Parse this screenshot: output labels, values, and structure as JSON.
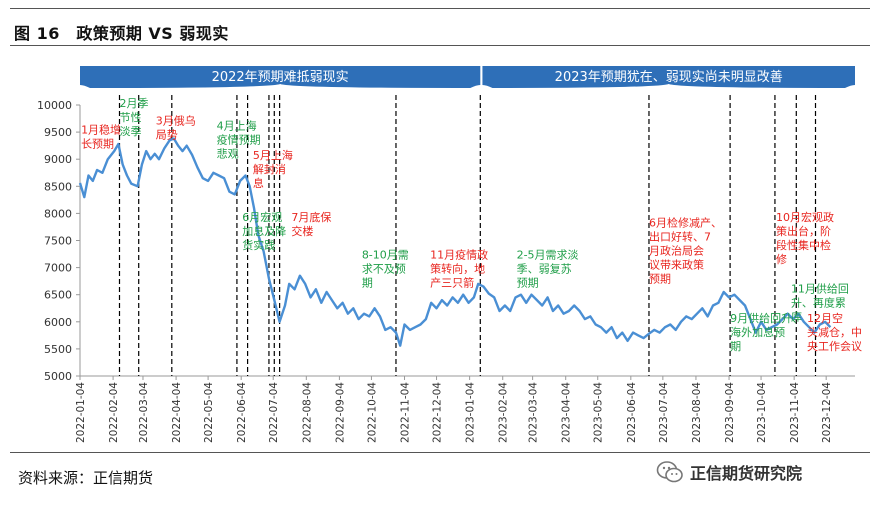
{
  "figure_title": "图 16　政策预期 VS 弱现实",
  "source_text": "资料来源：正信期货",
  "logo_text": "正信期货研究院",
  "colors": {
    "line": "#4a8fd4",
    "band": "#2e6fb8",
    "red": "#e8251f",
    "green": "#1f9e48"
  },
  "chart_data": {
    "type": "line",
    "title": "",
    "xlabel": "",
    "ylabel": "",
    "ylim": [
      5000,
      10000
    ],
    "yticks": [
      5000,
      5500,
      6000,
      6500,
      7000,
      7500,
      8000,
      8500,
      9000,
      9500,
      10000
    ],
    "xlim": [
      "2022-01-04",
      "2023-12-31"
    ],
    "xticks": [
      "2022-01-04",
      "2022-02-04",
      "2022-03-04",
      "2022-04-04",
      "2022-05-04",
      "2022-06-04",
      "2022-07-04",
      "2022-08-04",
      "2022-09-04",
      "2022-10-04",
      "2022-11-04",
      "2022-12-04",
      "2023-01-04",
      "2023-02-04",
      "2023-03-04",
      "2023-04-04",
      "2023-05-04",
      "2023-06-04",
      "2023-07-04",
      "2023-08-04",
      "2023-09-04",
      "2023-10-04",
      "2023-11-04",
      "2023-12-04"
    ],
    "band_labels": [
      {
        "text": "2022年预期难抵弱现实",
        "from": "2022-01-01",
        "to": "2023-01-14"
      },
      {
        "text": "2023年预期犹在、弱现实尚未明显改善",
        "from": "2023-01-16",
        "to": "2023-12-31"
      }
    ],
    "series": [
      {
        "points": [
          [
            "2022-01-04",
            8560
          ],
          [
            "2022-01-08",
            8300
          ],
          [
            "2022-01-12",
            8700
          ],
          [
            "2022-01-16",
            8600
          ],
          [
            "2022-01-20",
            8800
          ],
          [
            "2022-01-25",
            8750
          ],
          [
            "2022-01-30",
            9000
          ],
          [
            "2022-02-05",
            9150
          ],
          [
            "2022-02-09",
            9280
          ],
          [
            "2022-02-13",
            8900
          ],
          [
            "2022-02-17",
            8700
          ],
          [
            "2022-02-21",
            8550
          ],
          [
            "2022-02-27",
            8500
          ],
          [
            "2022-03-03",
            8900
          ],
          [
            "2022-03-07",
            9150
          ],
          [
            "2022-03-11",
            9000
          ],
          [
            "2022-03-15",
            9100
          ],
          [
            "2022-03-19",
            9000
          ],
          [
            "2022-03-24",
            9200
          ],
          [
            "2022-03-29",
            9350
          ],
          [
            "2022-04-02",
            9380
          ],
          [
            "2022-04-06",
            9250
          ],
          [
            "2022-04-10",
            9150
          ],
          [
            "2022-04-14",
            9250
          ],
          [
            "2022-04-19",
            9080
          ],
          [
            "2022-04-24",
            8850
          ],
          [
            "2022-04-29",
            8650
          ],
          [
            "2022-05-04",
            8600
          ],
          [
            "2022-05-09",
            8750
          ],
          [
            "2022-05-14",
            8700
          ],
          [
            "2022-05-19",
            8650
          ],
          [
            "2022-05-24",
            8400
          ],
          [
            "2022-05-29",
            8350
          ],
          [
            "2022-06-03",
            8600
          ],
          [
            "2022-06-08",
            8700
          ],
          [
            "2022-06-12",
            8500
          ],
          [
            "2022-06-16",
            8100
          ],
          [
            "2022-06-20",
            7600
          ],
          [
            "2022-06-25",
            7300
          ],
          [
            "2022-06-30",
            6800
          ],
          [
            "2022-07-05",
            6400
          ],
          [
            "2022-07-10",
            6000
          ],
          [
            "2022-07-15",
            6300
          ],
          [
            "2022-07-19",
            6700
          ],
          [
            "2022-07-24",
            6600
          ],
          [
            "2022-07-29",
            6850
          ],
          [
            "2022-08-03",
            6700
          ],
          [
            "2022-08-08",
            6450
          ],
          [
            "2022-08-13",
            6600
          ],
          [
            "2022-08-18",
            6350
          ],
          [
            "2022-08-23",
            6550
          ],
          [
            "2022-08-28",
            6400
          ],
          [
            "2022-09-02",
            6250
          ],
          [
            "2022-09-07",
            6350
          ],
          [
            "2022-09-12",
            6150
          ],
          [
            "2022-09-17",
            6250
          ],
          [
            "2022-09-22",
            6050
          ],
          [
            "2022-09-27",
            6150
          ],
          [
            "2022-10-02",
            6100
          ],
          [
            "2022-10-07",
            6250
          ],
          [
            "2022-10-12",
            6100
          ],
          [
            "2022-10-17",
            5850
          ],
          [
            "2022-10-22",
            5900
          ],
          [
            "2022-10-27",
            5800
          ],
          [
            "2022-10-31",
            5560
          ],
          [
            "2022-11-04",
            5950
          ],
          [
            "2022-11-09",
            5850
          ],
          [
            "2022-11-14",
            5900
          ],
          [
            "2022-11-19",
            5950
          ],
          [
            "2022-11-24",
            6050
          ],
          [
            "2022-11-29",
            6350
          ],
          [
            "2022-12-04",
            6250
          ],
          [
            "2022-12-09",
            6400
          ],
          [
            "2022-12-14",
            6300
          ],
          [
            "2022-12-19",
            6450
          ],
          [
            "2022-12-24",
            6350
          ],
          [
            "2022-12-29",
            6500
          ],
          [
            "2023-01-03",
            6350
          ],
          [
            "2023-01-08",
            6450
          ],
          [
            "2023-01-12",
            6700
          ],
          [
            "2023-01-17",
            6650
          ],
          [
            "2023-01-22",
            6520
          ],
          [
            "2023-01-27",
            6450
          ],
          [
            "2023-02-01",
            6200
          ],
          [
            "2023-02-06",
            6300
          ],
          [
            "2023-02-11",
            6200
          ],
          [
            "2023-02-16",
            6450
          ],
          [
            "2023-02-21",
            6500
          ],
          [
            "2023-02-26",
            6350
          ],
          [
            "2023-03-03",
            6500
          ],
          [
            "2023-03-08",
            6400
          ],
          [
            "2023-03-13",
            6300
          ],
          [
            "2023-03-18",
            6450
          ],
          [
            "2023-03-23",
            6200
          ],
          [
            "2023-03-28",
            6300
          ],
          [
            "2023-04-02",
            6150
          ],
          [
            "2023-04-07",
            6200
          ],
          [
            "2023-04-12",
            6300
          ],
          [
            "2023-04-17",
            6200
          ],
          [
            "2023-04-22",
            6050
          ],
          [
            "2023-04-27",
            6100
          ],
          [
            "2023-05-02",
            5950
          ],
          [
            "2023-05-07",
            5900
          ],
          [
            "2023-05-12",
            5800
          ],
          [
            "2023-05-17",
            5900
          ],
          [
            "2023-05-22",
            5700
          ],
          [
            "2023-05-27",
            5800
          ],
          [
            "2023-06-01",
            5650
          ],
          [
            "2023-06-06",
            5800
          ],
          [
            "2023-06-11",
            5750
          ],
          [
            "2023-06-16",
            5700
          ],
          [
            "2023-06-21",
            5780
          ],
          [
            "2023-06-26",
            5850
          ],
          [
            "2023-07-01",
            5800
          ],
          [
            "2023-07-06",
            5900
          ],
          [
            "2023-07-11",
            5950
          ],
          [
            "2023-07-16",
            5850
          ],
          [
            "2023-07-21",
            6000
          ],
          [
            "2023-07-26",
            6100
          ],
          [
            "2023-07-31",
            6050
          ],
          [
            "2023-08-05",
            6150
          ],
          [
            "2023-08-10",
            6250
          ],
          [
            "2023-08-15",
            6100
          ],
          [
            "2023-08-20",
            6300
          ],
          [
            "2023-08-25",
            6350
          ],
          [
            "2023-08-30",
            6550
          ],
          [
            "2023-09-04",
            6450
          ],
          [
            "2023-09-09",
            6500
          ],
          [
            "2023-09-14",
            6400
          ],
          [
            "2023-09-19",
            6300
          ],
          [
            "2023-09-24",
            6050
          ],
          [
            "2023-09-29",
            5800
          ],
          [
            "2023-10-04",
            6000
          ],
          [
            "2023-10-09",
            5850
          ],
          [
            "2023-10-14",
            5900
          ],
          [
            "2023-10-19",
            5950
          ],
          [
            "2023-10-24",
            6050
          ],
          [
            "2023-10-29",
            6150
          ],
          [
            "2023-11-03",
            6050
          ],
          [
            "2023-11-08",
            6150
          ],
          [
            "2023-11-13",
            6000
          ],
          [
            "2023-11-18",
            5900
          ],
          [
            "2023-11-23",
            5800
          ],
          [
            "2023-11-28",
            5950
          ],
          [
            "2023-12-03",
            6000
          ],
          [
            "2023-12-08",
            5900
          ]
        ]
      }
    ],
    "event_dates": [
      "2022-02-10",
      "2022-02-28",
      "2022-03-31",
      "2022-05-31",
      "2022-06-10",
      "2022-06-30",
      "2022-07-05",
      "2022-07-10",
      "2022-10-27",
      "2023-01-14",
      "2023-06-21",
      "2023-09-05",
      "2023-10-17",
      "2023-11-06",
      "2023-11-24"
    ],
    "annotations": [
      {
        "date": "2022-01-05",
        "value": 9470,
        "lines": [
          "1月稳增",
          "长预期"
        ],
        "color": "red"
      },
      {
        "date": "2022-02-10",
        "value": 9960,
        "lines": [
          "2月季",
          "节性",
          "淡季"
        ],
        "color": "green"
      },
      {
        "date": "2022-03-16",
        "value": 9640,
        "lines": [
          "3月俄乌",
          "局势"
        ],
        "color": "red"
      },
      {
        "date": "2022-05-12",
        "value": 9550,
        "lines": [
          "4月上海",
          "疫情预期",
          "悲观"
        ],
        "color": "green"
      },
      {
        "date": "2022-06-15",
        "value": 9000,
        "lines": [
          "5月上海",
          "解封消",
          "息"
        ],
        "color": "red"
      },
      {
        "date": "2022-06-05",
        "value": 7860,
        "lines": [
          "6月宏观",
          "加息及降",
          "货实践"
        ],
        "color": "green"
      },
      {
        "date": "2022-07-21",
        "value": 7860,
        "lines": [
          "7月底保",
          "交楼"
        ],
        "color": "red"
      },
      {
        "date": "2022-09-25",
        "value": 7170,
        "lines": [
          "8-10月需",
          "求不及预",
          "期"
        ],
        "color": "green"
      },
      {
        "date": "2022-11-28",
        "value": 7170,
        "lines": [
          "11月疫情政",
          "策转向，地",
          "产三只箭"
        ],
        "color": "red"
      },
      {
        "date": "2023-02-17",
        "value": 7170,
        "lines": [
          "2-5月需求淡",
          "季、弱复苏",
          "预期"
        ],
        "color": "green"
      },
      {
        "date": "2023-06-21",
        "value": 7760,
        "lines": [
          "6月检修减产、",
          "出口好转、7",
          "月政治局会",
          "议带来政策",
          "预期"
        ],
        "color": "red"
      },
      {
        "date": "2023-09-05",
        "value": 6000,
        "lines": [
          "9月供给回升、",
          "海外加息预",
          "期"
        ],
        "color": "green"
      },
      {
        "date": "2023-10-18",
        "value": 7860,
        "lines": [
          "10月宏观政",
          "策出台，阶",
          "段性集中检",
          "修"
        ],
        "color": "red"
      },
      {
        "date": "2023-11-01",
        "value": 6540,
        "lines": [
          "11月供给回",
          "升、再度累",
          "库"
        ],
        "color": "green"
      },
      {
        "date": "2023-11-16",
        "value": 6000,
        "lines": [
          "12月空",
          "头减仓，中",
          "央工作会议"
        ],
        "color": "red"
      }
    ]
  }
}
